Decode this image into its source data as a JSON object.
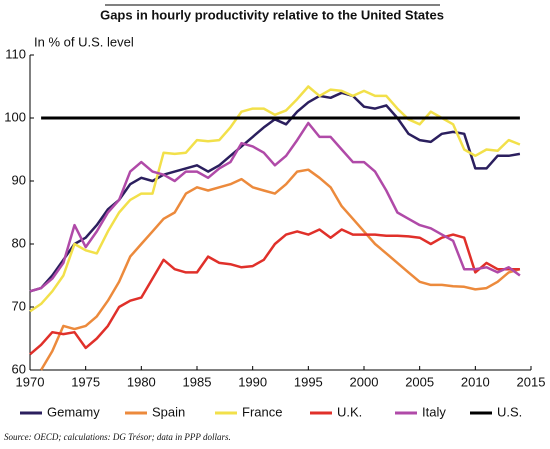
{
  "chart_data": {
    "type": "line",
    "title": "Gaps in hourly productivity relative to the United States",
    "y_label": "In % of U.S. level",
    "source": "Source: OECD; calculations: DG Trésor; data in PPP dollars.",
    "x": [
      1970,
      1971,
      1972,
      1973,
      1974,
      1975,
      1976,
      1977,
      1978,
      1979,
      1980,
      1981,
      1982,
      1983,
      1984,
      1985,
      1986,
      1987,
      1988,
      1989,
      1990,
      1991,
      1992,
      1993,
      1994,
      1995,
      1996,
      1997,
      1998,
      1999,
      2000,
      2001,
      2002,
      2003,
      2004,
      2005,
      2006,
      2007,
      2008,
      2009,
      2010,
      2011,
      2012,
      2013,
      2014
    ],
    "xlim": [
      1970,
      2015
    ],
    "xticks": [
      1970,
      1975,
      1980,
      1985,
      1990,
      1995,
      2000,
      2005,
      2010,
      2015
    ],
    "ylim": [
      60,
      110
    ],
    "yticks": [
      60,
      70,
      80,
      90,
      100,
      110
    ],
    "grid": false,
    "legend": "bottom",
    "series": [
      {
        "name": "Gemamy",
        "color": "#2b1f5e",
        "values": [
          72.5,
          73,
          75,
          77.5,
          80,
          81,
          83,
          85.5,
          87,
          89.5,
          90.5,
          90,
          91,
          91.5,
          92,
          92.5,
          91.5,
          92.5,
          94,
          95.5,
          97,
          98.5,
          99.8,
          99,
          101,
          102.5,
          103.5,
          103.2,
          104,
          103.5,
          101.8,
          101.5,
          102,
          100,
          97.5,
          96.5,
          96.2,
          97.5,
          97.8,
          97.5,
          92,
          92,
          94,
          94,
          94.3
        ]
      },
      {
        "name": "Spain",
        "color": "#ec8a3c",
        "values": [
          null,
          60,
          63,
          67,
          66.5,
          67,
          68.5,
          71,
          74,
          78,
          80,
          82,
          84,
          85,
          88,
          89,
          88.5,
          89,
          89.5,
          90.3,
          89,
          88.5,
          88,
          89.5,
          91.5,
          91.8,
          90.5,
          89,
          86,
          84,
          82,
          80,
          78.5,
          77,
          75.5,
          74,
          73.5,
          73.5,
          73.3,
          73.2,
          72.8,
          73,
          74,
          75.5,
          76
        ]
      },
      {
        "name": "France",
        "color": "#f2e04a",
        "values": [
          69.3,
          70.5,
          72.5,
          75,
          80,
          79,
          78.5,
          82,
          85,
          87,
          88,
          88,
          94.5,
          94.3,
          94.5,
          96.5,
          96.3,
          96.5,
          98.5,
          101,
          101.5,
          101.5,
          100.5,
          101.2,
          103,
          105,
          103.5,
          104.5,
          104.3,
          103.5,
          104.3,
          103.5,
          103.5,
          101.5,
          99.8,
          99,
          101,
          100,
          99,
          95,
          94,
          95,
          94.8,
          96.5,
          95.8
        ]
      },
      {
        "name": "U.K.",
        "color": "#e0302a",
        "values": [
          62.5,
          64,
          66,
          65.7,
          66,
          63.5,
          65,
          67,
          70,
          71,
          71.5,
          74.5,
          77.5,
          76,
          75.5,
          75.5,
          78,
          77,
          76.8,
          76.3,
          76.5,
          77.5,
          80,
          81.5,
          82,
          81.5,
          82.3,
          81,
          82.3,
          81.5,
          81.5,
          81.5,
          81.3,
          81.3,
          81.2,
          81,
          80,
          81,
          81.5,
          81,
          75.5,
          77,
          76,
          76,
          76
        ]
      },
      {
        "name": "Italy",
        "color": "#b04aa8",
        "values": [
          72.5,
          73,
          74.5,
          77,
          83,
          79.5,
          82,
          85,
          87,
          91.5,
          93,
          91.5,
          91,
          90,
          91.5,
          91.5,
          90.5,
          92,
          93,
          96,
          95.5,
          94.5,
          92.5,
          94,
          96.5,
          99.2,
          97,
          97,
          95,
          93,
          93,
          91.5,
          88.5,
          85,
          84,
          83,
          82.5,
          81.5,
          80.5,
          76,
          76,
          76.3,
          75.5,
          76.3,
          75
        ]
      },
      {
        "name": "U.S.",
        "color": "#000000",
        "values": [
          null,
          100,
          100,
          100,
          100,
          100,
          100,
          100,
          100,
          100,
          100,
          100,
          100,
          100,
          100,
          100,
          100,
          100,
          100,
          100,
          100,
          100,
          100,
          100,
          100,
          100,
          100,
          100,
          100,
          100,
          100,
          100,
          100,
          100,
          100,
          100,
          100,
          100,
          100,
          100,
          100,
          100,
          100,
          100,
          100
        ]
      }
    ]
  }
}
